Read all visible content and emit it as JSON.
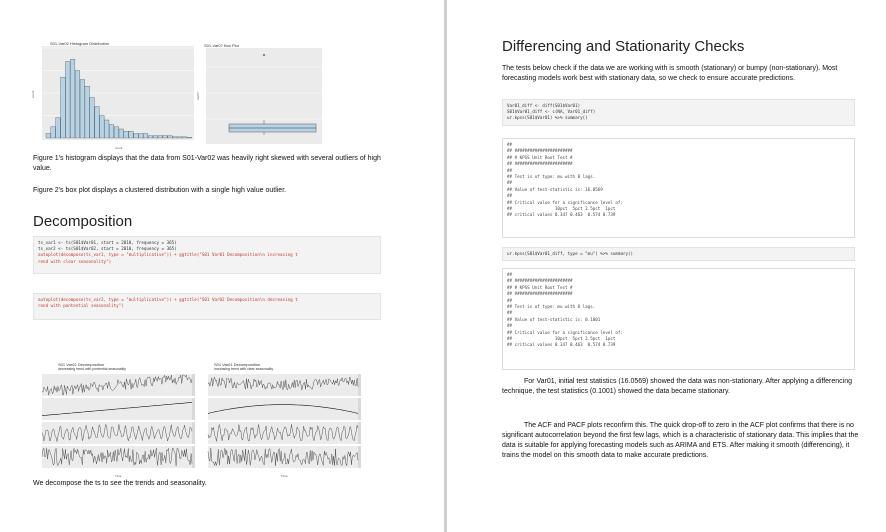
{
  "left_page": {
    "histogram": {
      "title": "S01-Var02 Histogram Distribution",
      "x_label": "count",
      "y_label": "count",
      "chart_data": {
        "type": "bar",
        "title": "S01-Var02 Histogram Distribution",
        "values": [
          2,
          5,
          9,
          27,
          34,
          35,
          30,
          26,
          23,
          18,
          14,
          10,
          8,
          6,
          5,
          4,
          3,
          3,
          2,
          2,
          2,
          1,
          1,
          1,
          1,
          1,
          0.5,
          0.5,
          0.5,
          0.3
        ]
      }
    },
    "boxplot": {
      "title": "S01-Var07 Box Plot",
      "y_label": "Var07"
    },
    "para1": "Figure 1's histogram displays that the data from S01-Var02 was heavily right skewed with several outliers of high value.",
    "para2": "Figure 2's box plot displays a clustered distribution with a single high value outlier.",
    "decomposition_heading": "Decomposition",
    "code1": {
      "line1": "ts_var1 <- ts(S01$Var01, start = 2010, frequency = 365)",
      "line2": "ts_var2 <- ts(S01$Var02, start = 2010, frequency = 365)",
      "line3": "autoplot(decompose(ts_var1, type = \"multiplicative\")) + ggtitle(\"S01 Var01 Decomposition\\n increasing t",
      "line4": "rend with clear seasonality\")"
    },
    "code2": {
      "line1": "autoplot(decompose(ts_var2, type = \"multiplicative\")) + ggtitle(\"S01 Var02 Decomposition\\n decreasing t",
      "line2": "rend with pontential seasonality\")"
    },
    "decomp_plot_1": {
      "title": "S01 Var02 Decomposition",
      "subtitle": "decreasing trend with pontential seasonality",
      "x_label": "Time"
    },
    "decomp_plot_2": {
      "title": "S01 Var01 Decomposition",
      "subtitle": "increasing trend with clear seasonality",
      "x_label": "Time"
    },
    "para3": "We decompose the ts to see the trends and seasonality."
  },
  "right_page": {
    "heading": "Differencing and Stationarity Checks",
    "intro": "The tests below check if the data we are working with is smooth (stationary) or bumpy (non-stationary). Most forecasting models work best with stationary data, so we check to ensure accurate predictions.",
    "code1": {
      "line1": "Var01_diff <- diff(S01$Var01)",
      "line2": "S01$Var01_diff <- c(NA, Var01_diff)",
      "line3": "ur.kpss(S01$Var01) %>% summary()"
    },
    "output1": {
      "l1": "##",
      "l2": "## #######################",
      "l3": "## # KPSS Unit Root Test #",
      "l4": "## #######################",
      "l5": "##",
      "l6": "## Test is of type: mu with 8 lags.",
      "l7": "##",
      "l8": "## Value of test-statistic is: 16.0569",
      "l9": "##",
      "l10": "## Critical value for a significance level of:",
      "l11": "##                 10pct  5pct 2.5pct  1pct",
      "l12": "## critical values 0.347 0.463  0.574 0.739"
    },
    "code2": {
      "line1": "ur.kpss(S01$Var01_diff, type = \"mu\") %>% summary()"
    },
    "output2": {
      "l1": "##",
      "l2": "## #######################",
      "l3": "## # KPSS Unit Root Test #",
      "l4": "## #######################",
      "l5": "##",
      "l6": "## Test is of type: mu with 8 lags.",
      "l7": "##",
      "l8": "## Value of test-statistic is: 0.1001",
      "l9": "##",
      "l10": "## Critical value for a significance level of:",
      "l11": "##                 10pct  5pct 2.5pct  1pct",
      "l12": "## critical values 0.347 0.463  0.574 0.739"
    },
    "para1": "For Var01, initial test statistics (16.0569) showed the data was non-stationary. After applying a differencing technique, the test statistics (0.1001) showed the data became stationary.",
    "para2": "The ACF and PACF plots reconfirm this. The quick drop-off to zero in the ACF plot confirms that there is no significant autocorrelation beyond the first few lags, which is a characteristic of stationary data. This implies that the data is suitable for applying forecasting models such as ARIMA and ETS. After making it smooth (differencing), it trains the model on this smooth data to make accurate predictions."
  }
}
